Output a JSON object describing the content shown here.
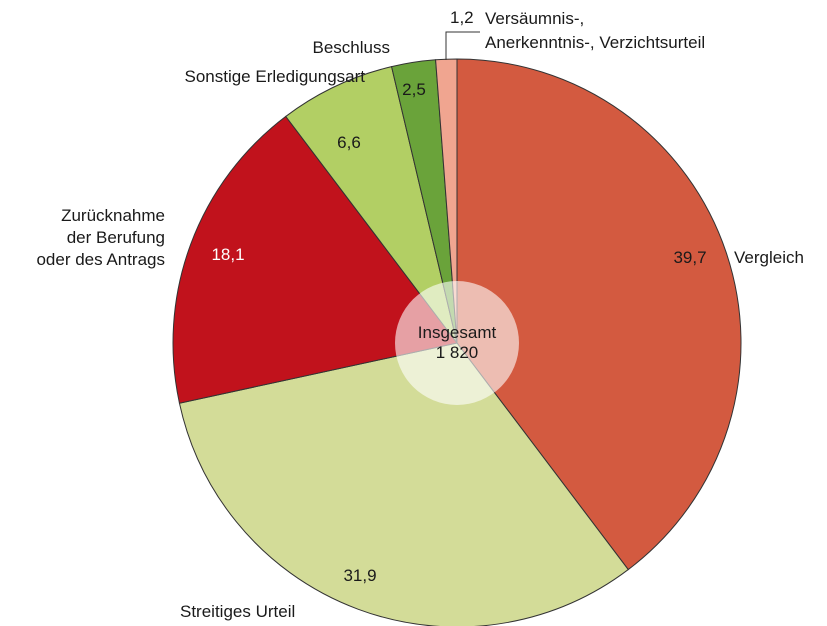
{
  "chart_data": {
    "type": "pie",
    "categories": [
      "Vergleich",
      "Streitiges Urteil",
      "Zurücknahme\nder Berufung\noder des Antrags",
      "Sonstige Erledigungsart",
      "Beschluss",
      "Versäumnis-,\nAnerkenntnis-, Verzichtsurteil"
    ],
    "values": [
      39.7,
      31.9,
      18.1,
      6.6,
      2.5,
      1.2
    ],
    "value_labels": [
      "39,7",
      "31,9",
      "18,1",
      "6,6",
      "2,5",
      "1,2"
    ],
    "colors": [
      "#d35a40",
      "#d3dc98",
      "#c1121c",
      "#b2cf64",
      "#6aa33a",
      "#f0a590"
    ],
    "center_text": [
      "Insgesamt",
      "1 820"
    ]
  }
}
